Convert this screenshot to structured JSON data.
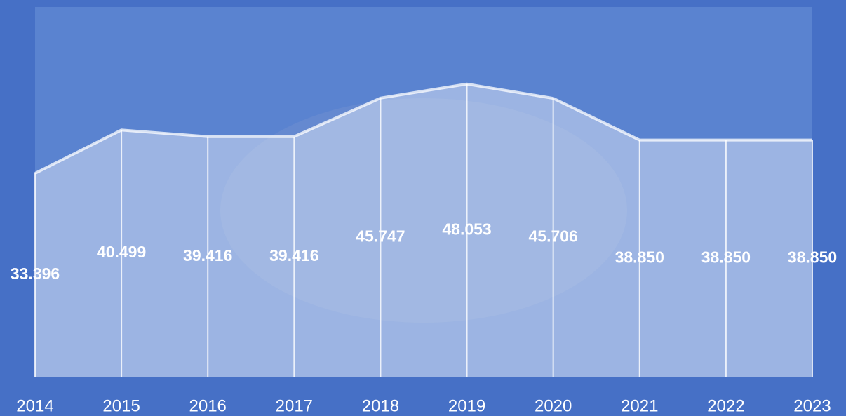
{
  "chart_data": {
    "type": "area",
    "categories": [
      "2014",
      "2015",
      "2016",
      "2017",
      "2018",
      "2019",
      "2020",
      "2021",
      "2022",
      "2023"
    ],
    "values": [
      33.396,
      40.499,
      39.416,
      39.416,
      45.747,
      48.053,
      45.706,
      38.85,
      38.85,
      38.85
    ],
    "value_labels": [
      "33.396",
      "40.499",
      "39.416",
      "39.416",
      "45.747",
      "48.053",
      "45.706",
      "38.850",
      "38.850",
      "38.850"
    ],
    "color": "#ffffff",
    "ylim": [
      0,
      60
    ]
  }
}
